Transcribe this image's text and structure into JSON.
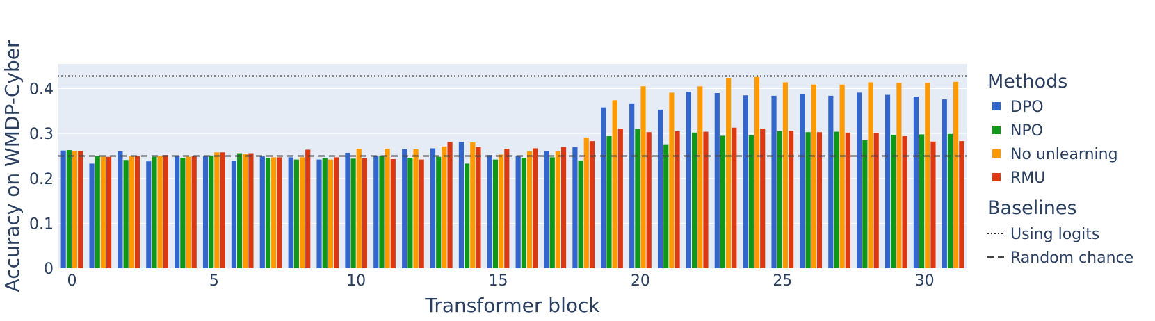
{
  "chart_data": {
    "type": "bar",
    "xlabel": "Transformer block",
    "ylabel": "Accuracy on WMDP-Cyber",
    "xlim": [
      -0.5,
      31.5
    ],
    "ylim": [
      0,
      0.455
    ],
    "x_ticks": [
      0,
      5,
      10,
      15,
      20,
      25,
      30
    ],
    "y_ticks": [
      0,
      0.1,
      0.2,
      0.3,
      0.4
    ],
    "y_tick_labels": [
      "0",
      "0.1",
      "0.2",
      "0.3",
      "0.4"
    ],
    "grid": true,
    "legend_placement": "right",
    "legend": {
      "groups": [
        {
          "title": "Methods",
          "entries": [
            "DPO",
            "NPO",
            "No unlearning",
            "RMU"
          ]
        },
        {
          "title": "Baselines",
          "entries": [
            "Using logits",
            "Random chance"
          ]
        }
      ]
    },
    "x": [
      0,
      1,
      2,
      3,
      4,
      5,
      6,
      7,
      8,
      9,
      10,
      11,
      12,
      13,
      14,
      15,
      16,
      17,
      18,
      19,
      20,
      21,
      22,
      23,
      24,
      25,
      26,
      27,
      28,
      29,
      30,
      31
    ],
    "series": [
      {
        "name": "DPO",
        "color": "#3366cc",
        "values": [
          0.262,
          0.233,
          0.26,
          0.238,
          0.251,
          0.25,
          0.239,
          0.249,
          0.247,
          0.242,
          0.257,
          0.25,
          0.265,
          0.267,
          0.281,
          0.252,
          0.251,
          0.261,
          0.27,
          0.358,
          0.367,
          0.353,
          0.393,
          0.39,
          0.385,
          0.384,
          0.387,
          0.384,
          0.391,
          0.386,
          0.382,
          0.376
        ]
      },
      {
        "name": "NPO",
        "color": "#109618",
        "values": [
          0.263,
          0.25,
          0.241,
          0.248,
          0.246,
          0.251,
          0.256,
          0.246,
          0.242,
          0.245,
          0.244,
          0.251,
          0.246,
          0.248,
          0.233,
          0.242,
          0.246,
          0.247,
          0.24,
          0.294,
          0.31,
          0.276,
          0.302,
          0.295,
          0.296,
          0.305,
          0.303,
          0.304,
          0.285,
          0.297,
          0.298,
          0.299
        ]
      },
      {
        "name": "No unlearning",
        "color": "#ff9900",
        "values": [
          0.261,
          0.248,
          0.25,
          0.25,
          0.248,
          0.258,
          0.254,
          0.247,
          0.247,
          0.242,
          0.266,
          0.266,
          0.265,
          0.271,
          0.28,
          0.253,
          0.26,
          0.26,
          0.291,
          0.374,
          0.405,
          0.391,
          0.405,
          0.424,
          0.426,
          0.414,
          0.409,
          0.409,
          0.414,
          0.413,
          0.413,
          0.415
        ]
      },
      {
        "name": "RMU",
        "color": "#dc3912",
        "values": [
          0.261,
          0.248,
          0.25,
          0.252,
          0.249,
          0.258,
          0.256,
          0.247,
          0.264,
          0.247,
          0.245,
          0.243,
          0.242,
          0.281,
          0.27,
          0.266,
          0.267,
          0.27,
          0.283,
          0.311,
          0.303,
          0.305,
          0.304,
          0.313,
          0.311,
          0.306,
          0.303,
          0.302,
          0.301,
          0.294,
          0.282,
          0.283
        ]
      }
    ],
    "baselines": [
      {
        "name": "Using logits",
        "value": 0.428,
        "style": "dotted",
        "color": "#222222"
      },
      {
        "name": "Random chance",
        "value": 0.25,
        "style": "dashed",
        "color": "#444444"
      }
    ],
    "colors": {
      "plot_bg": "#e5ecf6",
      "grid": "#ffffff",
      "text": "#2a3f5f"
    }
  }
}
